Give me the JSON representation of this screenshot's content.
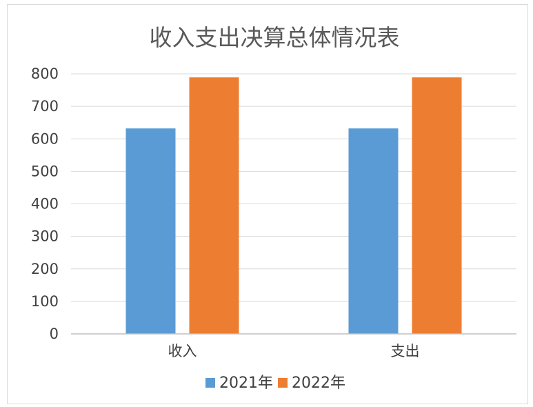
{
  "chart_data": {
    "type": "bar",
    "title": "收入支出决算总体情况表",
    "categories": [
      "收入",
      "支出"
    ],
    "series": [
      {
        "name": "2021年",
        "values": [
          632,
          632
        ],
        "color": "#5b9bd5"
      },
      {
        "name": "2022年",
        "values": [
          789,
          789
        ],
        "color": "#ed7d31"
      }
    ],
    "ylim": [
      0,
      800
    ],
    "yticks": [
      0,
      100,
      200,
      300,
      400,
      500,
      600,
      700,
      800
    ],
    "grid": true,
    "legend_position": "bottom"
  }
}
